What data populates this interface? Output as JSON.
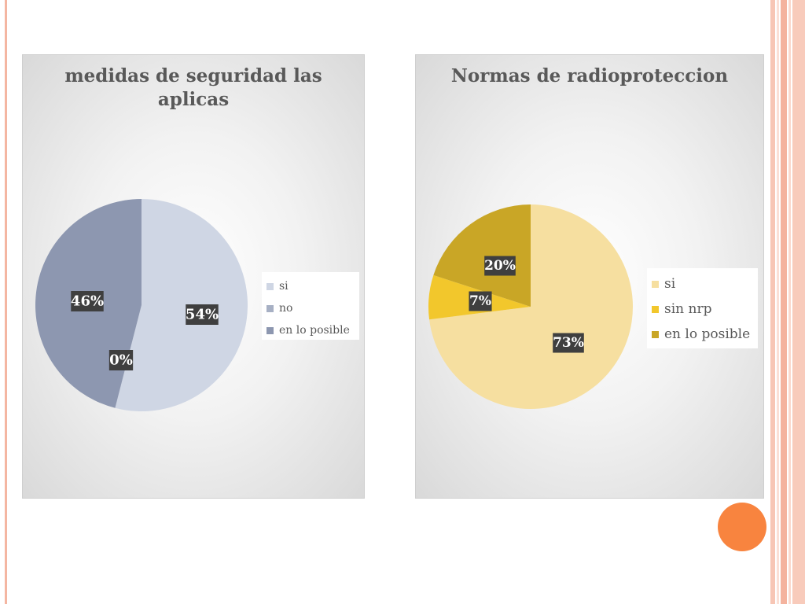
{
  "slide": {
    "accent_colors": {
      "rule": "#f4b6a2",
      "dot": "#f8843f"
    }
  },
  "chart_data": [
    {
      "type": "pie",
      "title": "medidas de seguridad las aplicas",
      "categories": [
        "si",
        "no",
        "en lo posible"
      ],
      "values": [
        54,
        0,
        46
      ],
      "data_labels": [
        "54%",
        "0%",
        "46%"
      ],
      "colors": [
        "#cfd6e4",
        "#a7b0c4",
        "#8d97b0"
      ],
      "legend_position": "right"
    },
    {
      "type": "pie",
      "title": "Normas de radioproteccion",
      "categories": [
        "si",
        "sin nrp",
        "en lo posible"
      ],
      "values": [
        73,
        7,
        20
      ],
      "data_labels": [
        "73%",
        "7%",
        "20%"
      ],
      "colors": [
        "#f6dfa0",
        "#f2c72c",
        "#c9a626"
      ],
      "legend_position": "right"
    }
  ]
}
